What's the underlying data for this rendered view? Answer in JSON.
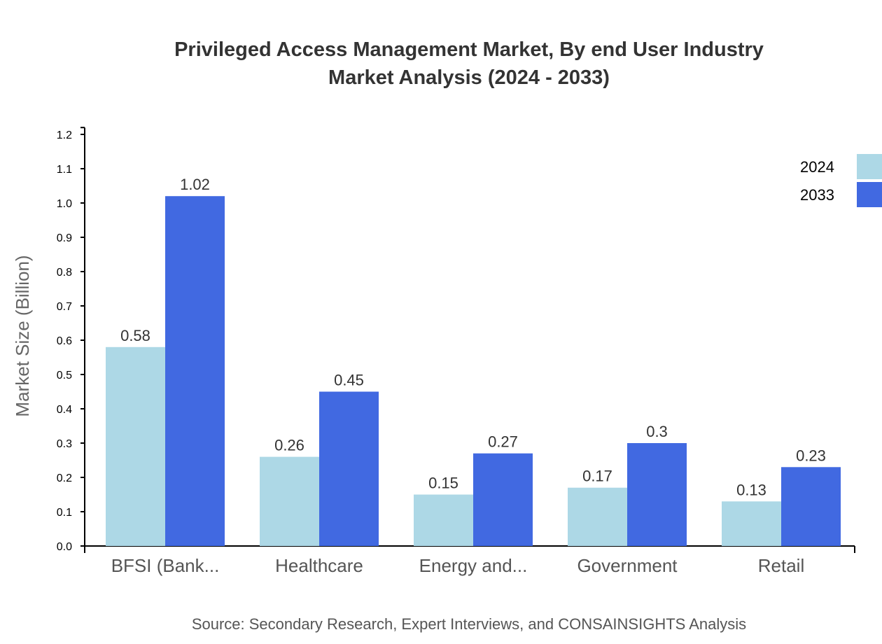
{
  "chart_data": {
    "type": "bar",
    "title": [
      "Privileged Access Management Market, By end User Industry",
      "Market Analysis (2024 - 2033)"
    ],
    "ylabel": "Market Size (Billion)",
    "xlabel": "",
    "ylim": [
      0,
      1.22
    ],
    "yticks": [
      "0.0",
      "0.1",
      "0.2",
      "0.3",
      "0.4",
      "0.5",
      "0.6",
      "0.7",
      "0.8",
      "0.9",
      "1.0",
      "1.1",
      "1.2"
    ],
    "categories": [
      "BFSI (Bank...",
      "Healthcare",
      "Energy and...",
      "Government",
      "Retail"
    ],
    "series": [
      {
        "name": "2024",
        "color": "#add8e6",
        "values": [
          0.58,
          0.26,
          0.15,
          0.17,
          0.13
        ],
        "labels": [
          "0.58",
          "0.26",
          "0.15",
          "0.17",
          "0.13"
        ]
      },
      {
        "name": "2033",
        "color": "#4169e1",
        "values": [
          1.02,
          0.45,
          0.27,
          0.3,
          0.23
        ],
        "labels": [
          "1.02",
          "0.45",
          "0.27",
          "0.3",
          "0.23"
        ]
      }
    ],
    "legend_position": "top-right",
    "grid": false
  },
  "source": "Source: Secondary Research, Expert Interviews, and CONSAINSIGHTS Analysis"
}
